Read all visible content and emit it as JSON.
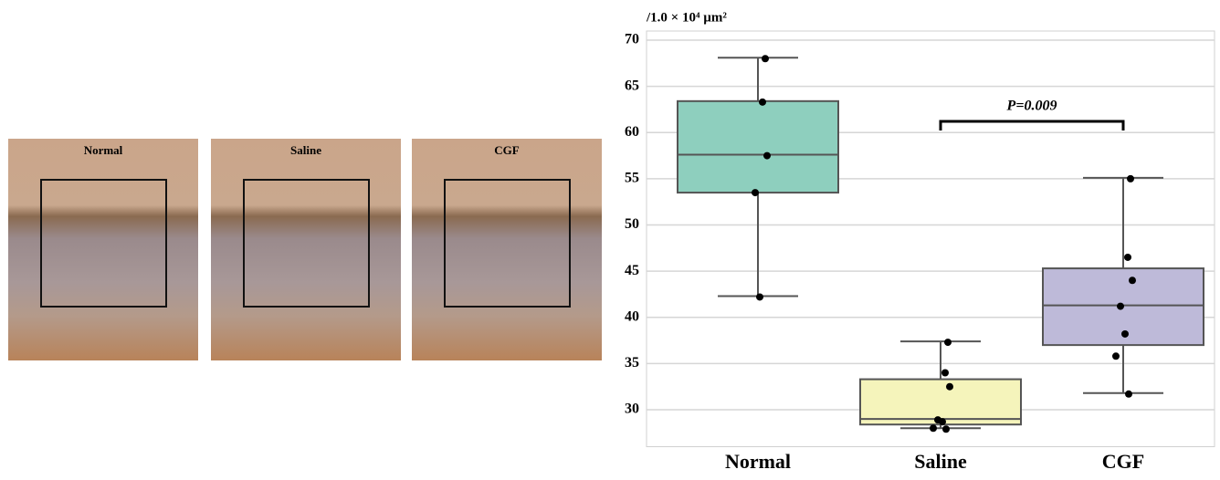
{
  "image_panels": {
    "labels": [
      "Normal",
      "Saline",
      "CGF"
    ]
  },
  "chart_data": {
    "type": "box",
    "y_label": "/1.0 × 10⁴ µm²",
    "categories": [
      "Normal",
      "Saline",
      "CGF"
    ],
    "colors": [
      "#8ecfbe",
      "#f5f4bb",
      "#bebad9"
    ],
    "boxes": [
      {
        "whisker_low": 42.3,
        "q1": 53.5,
        "median": 57.6,
        "q3": 63.4,
        "whisker_high": 68.1
      },
      {
        "whisker_low": 28.0,
        "q1": 28.4,
        "median": 29.0,
        "q3": 33.3,
        "whisker_high": 37.4
      },
      {
        "whisker_low": 31.8,
        "q1": 37.0,
        "median": 41.3,
        "q3": 45.3,
        "whisker_high": 55.1
      }
    ],
    "points": [
      [
        68.0,
        63.3,
        57.5,
        53.5,
        42.2
      ],
      [
        37.3,
        34.0,
        32.5,
        28.9,
        28.7,
        28.0,
        27.9
      ],
      [
        55.0,
        46.5,
        44.0,
        41.2,
        38.2,
        35.8,
        31.7
      ]
    ],
    "annotation": "P=0.009",
    "ylim": [
      26,
      70
    ],
    "yticks": [
      30,
      35,
      40,
      45,
      50,
      55,
      60,
      65,
      70
    ],
    "grid": true
  }
}
